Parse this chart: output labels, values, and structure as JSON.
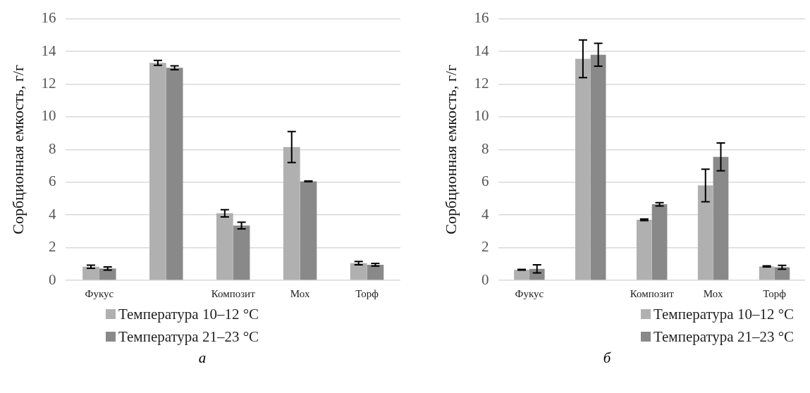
{
  "chart_data": [
    {
      "type": "bar",
      "categories": [
        "Фукус",
        null,
        "Композит",
        "Мох",
        "Торф"
      ],
      "ylabel": "Сорбционная емкость, г/г",
      "ylim": [
        0,
        16
      ],
      "yticks": [
        0,
        2,
        4,
        6,
        8,
        10,
        12,
        14,
        16
      ],
      "grid": "y",
      "legend": "bottom",
      "annotations": [
        "а"
      ],
      "series": [
        {
          "name": "Температура 10–12 °C",
          "color": "#b0b0b0",
          "values": [
            0.83,
            13.3,
            4.1,
            8.15,
            1.05
          ],
          "errors": [
            0.1,
            0.15,
            0.22,
            0.95,
            0.1
          ]
        },
        {
          "name": "Температура 21–23 °C",
          "color": "#898989",
          "values": [
            0.72,
            13.0,
            3.35,
            6.05,
            0.95
          ],
          "errors": [
            0.1,
            0.12,
            0.2,
            0.02,
            0.08
          ]
        }
      ]
    },
    {
      "type": "bar",
      "categories": [
        "Фукус",
        null,
        "Композит",
        "Мох",
        "Торф"
      ],
      "ylabel": "Сорбционная емкость, г/г",
      "ylim": [
        0,
        16
      ],
      "yticks": [
        0,
        2,
        4,
        6,
        8,
        10,
        12,
        14,
        16
      ],
      "grid": "y",
      "legend": "bottom",
      "annotations": [
        "б"
      ],
      "series": [
        {
          "name": "Температура 10–12 °C",
          "color": "#b0b0b0",
          "values": [
            0.65,
            13.55,
            3.7,
            5.8,
            0.85
          ],
          "errors": [
            0.02,
            1.15,
            0.05,
            1.0,
            0.03
          ]
        },
        {
          "name": "Температура 21–23 °C",
          "color": "#898989",
          "values": [
            0.7,
            13.8,
            4.65,
            7.55,
            0.8
          ],
          "errors": [
            0.25,
            0.7,
            0.1,
            0.85,
            0.12
          ]
        }
      ]
    }
  ]
}
